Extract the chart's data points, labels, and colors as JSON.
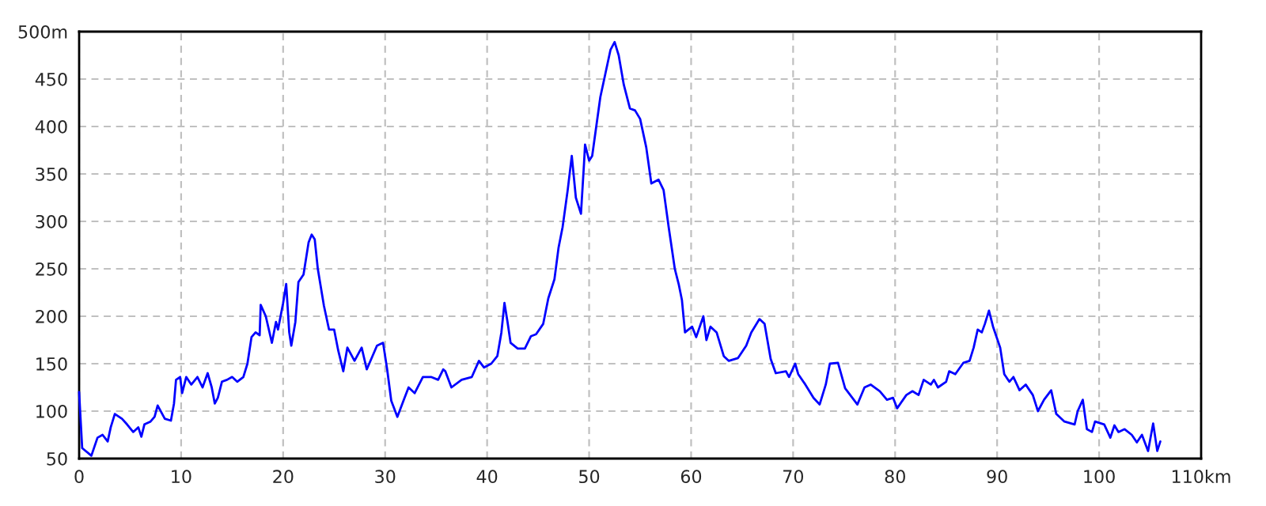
{
  "chart_data": {
    "type": "line",
    "grid": true,
    "line_style": "solid",
    "marker": "none",
    "xlim": [
      0,
      110
    ],
    "ylim": [
      50,
      500
    ],
    "xticks": [
      0,
      10,
      20,
      30,
      40,
      50,
      60,
      70,
      80,
      90,
      100,
      {
        "value": 110,
        "label": "110km"
      }
    ],
    "yticks": [
      50,
      100,
      150,
      200,
      250,
      300,
      350,
      400,
      450,
      {
        "value": 500,
        "label": "500m"
      }
    ],
    "series": [
      {
        "color": "#0000ff",
        "x": [
          0,
          0.1,
          0.3,
          1.2,
          1.8,
          2.3,
          2.8,
          3.1,
          3.5,
          4.2,
          4.7,
          5.3,
          5.8,
          6.1,
          6.4,
          7,
          7.4,
          7.7,
          8.4,
          9,
          9.3,
          9.5,
          9.9,
          10.1,
          10.5,
          11,
          11.6,
          12.1,
          12.6,
          13,
          13.3,
          13.6,
          14,
          14.5,
          15,
          15.5,
          16.1,
          16.5,
          16.9,
          17.3,
          17.7,
          17.8,
          18.3,
          18.9,
          19.3,
          19.5,
          20,
          20.3,
          20.6,
          20.8,
          21.2,
          21.5,
          22,
          22.5,
          22.8,
          23.1,
          23.4,
          24,
          24.5,
          25,
          25.4,
          25.9,
          26.3,
          27,
          27.7,
          28.2,
          29.2,
          29.8,
          30.2,
          30.6,
          31.2,
          31.8,
          32.3,
          32.9,
          33.7,
          34.5,
          35.2,
          35.7,
          35.9,
          36.5,
          37.5,
          38.5,
          39.2,
          39.7,
          40.4,
          41,
          41.4,
          41.7,
          42,
          42.3,
          43,
          43.7,
          44.3,
          44.8,
          45.5,
          46,
          46.6,
          47,
          47.4,
          47.9,
          48.3,
          48.7,
          49.2,
          49.5,
          49.6,
          50,
          50.3,
          50.7,
          51.1,
          51.6,
          52.1,
          52.5,
          52.9,
          53.4,
          54,
          54.5,
          55,
          55.6,
          56.1,
          56.8,
          57.3,
          57.8,
          58.4,
          58.8,
          59.1,
          59.4,
          60.1,
          60.5,
          61.2,
          61.5,
          61.9,
          62.5,
          63.2,
          63.7,
          64.6,
          65.4,
          65.9,
          66.7,
          67.2,
          67.8,
          68.3,
          69.3,
          69.6,
          70.2,
          70.5,
          71.2,
          72,
          72.6,
          73.2,
          73.6,
          74.4,
          75.1,
          76.3,
          77,
          77.6,
          78.5,
          79.2,
          79.8,
          80.2,
          81.1,
          81.7,
          82.3,
          82.8,
          83.5,
          83.8,
          84.2,
          85,
          85.3,
          85.9,
          86.7,
          87.3,
          87.7,
          88.1,
          88.5,
          88.8,
          89.2,
          89.6,
          90.3,
          90.7,
          91.2,
          91.6,
          92.2,
          92.8,
          93.5,
          94,
          94.6,
          95.3,
          95.8,
          96.6,
          97.6,
          97.9,
          98.4,
          98.8,
          99.3,
          99.6,
          100.5,
          101.1,
          101.5,
          101.9,
          102.5,
          103.2,
          103.7,
          104.2,
          104.8,
          105.3,
          105.7,
          106
        ],
        "values": [
          120,
          100,
          61,
          53,
          72,
          75,
          68,
          83,
          97,
          92,
          86,
          78,
          83,
          73,
          86,
          89,
          94,
          106,
          92,
          90,
          108,
          133,
          136,
          119,
          136,
          128,
          136,
          125,
          140,
          125,
          108,
          114,
          131,
          133,
          136,
          131,
          136,
          150,
          178,
          183,
          180,
          212,
          200,
          172,
          194,
          186,
          214,
          234,
          183,
          169,
          194,
          236,
          244,
          278,
          286,
          281,
          250,
          211,
          186,
          186,
          164,
          142,
          167,
          153,
          167,
          144,
          169,
          172,
          144,
          111,
          94,
          111,
          125,
          119,
          136,
          136,
          133,
          144,
          142,
          125,
          133,
          136,
          153,
          146,
          150,
          158,
          183,
          214,
          194,
          172,
          166,
          166,
          179,
          181,
          192,
          219,
          239,
          272,
          294,
          333,
          369,
          325,
          308,
          361,
          381,
          364,
          369,
          400,
          431,
          456,
          481,
          489,
          475,
          444,
          419,
          417,
          408,
          378,
          340,
          344,
          333,
          294,
          250,
          233,
          217,
          183,
          189,
          178,
          200,
          175,
          189,
          183,
          158,
          153,
          156,
          169,
          183,
          197,
          192,
          155,
          140,
          142,
          136,
          150,
          139,
          128,
          114,
          107,
          128,
          150,
          151,
          124,
          107,
          125,
          128,
          121,
          112,
          114,
          103,
          117,
          121,
          117,
          133,
          128,
          133,
          125,
          131,
          142,
          139,
          151,
          153,
          167,
          186,
          183,
          192,
          206,
          189,
          167,
          139,
          131,
          136,
          122,
          128,
          117,
          100,
          112,
          122,
          97,
          89,
          86,
          100,
          112,
          81,
          78,
          89,
          86,
          72,
          85,
          78,
          81,
          75,
          67,
          75,
          58,
          87,
          58,
          68
        ]
      }
    ]
  }
}
